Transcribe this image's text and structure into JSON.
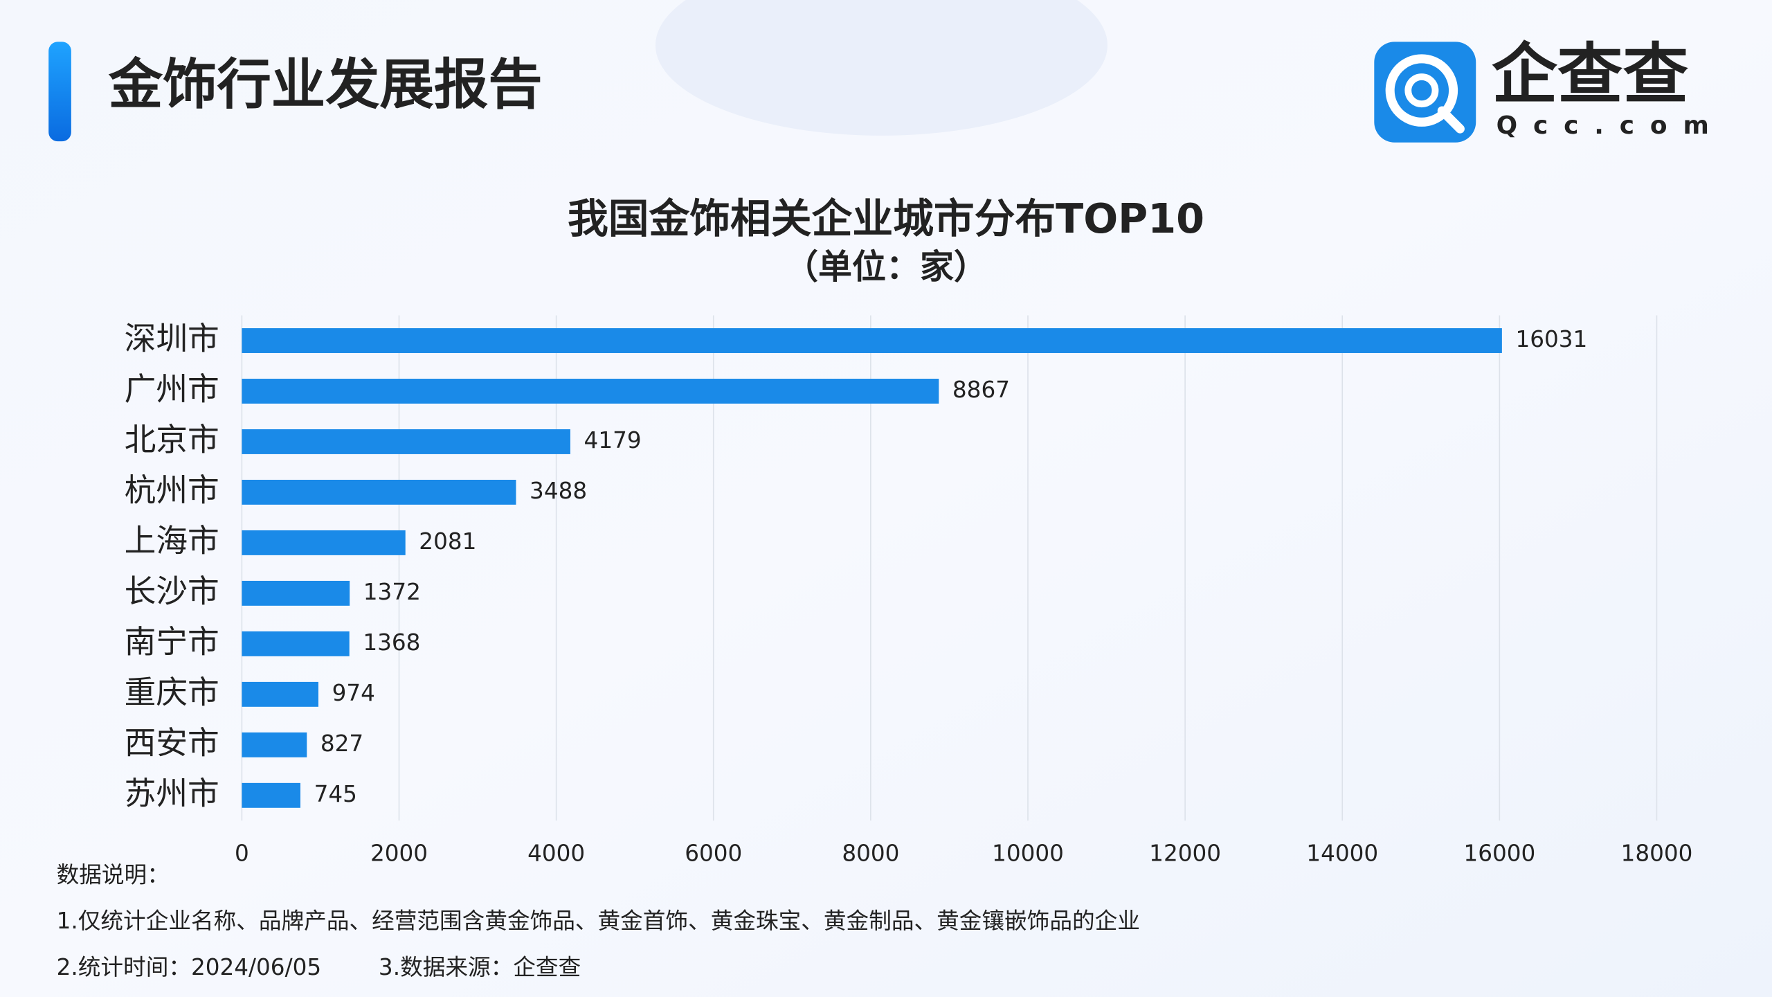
{
  "header": {
    "title": "金饰行业发展报告",
    "logo_name": "企查查",
    "logo_domain": "Qcc.com"
  },
  "chart_data": {
    "type": "bar",
    "orientation": "horizontal",
    "title": "我国金饰相关企业城市分布TOP10",
    "subtitle": "（单位：家）",
    "categories": [
      "深圳市",
      "广州市",
      "北京市",
      "杭州市",
      "上海市",
      "长沙市",
      "南宁市",
      "重庆市",
      "西安市",
      "苏州市"
    ],
    "values": [
      16031,
      8867,
      4179,
      3488,
      2081,
      1372,
      1368,
      974,
      827,
      745
    ],
    "color": "#1a8ae8",
    "xlim": [
      0,
      18000
    ],
    "xticks": [
      0,
      2000,
      4000,
      6000,
      8000,
      10000,
      12000,
      14000,
      16000,
      18000
    ],
    "grid": true
  },
  "notes": {
    "heading": "数据说明：",
    "items": [
      "1.仅统计企业名称、品牌产品、经营范围含黄金饰品、黄金首饰、黄金珠宝、黄金制品、黄金镶嵌饰品的企业",
      "2.统计时间：2024/06/05",
      "3.数据来源：企查查"
    ]
  }
}
